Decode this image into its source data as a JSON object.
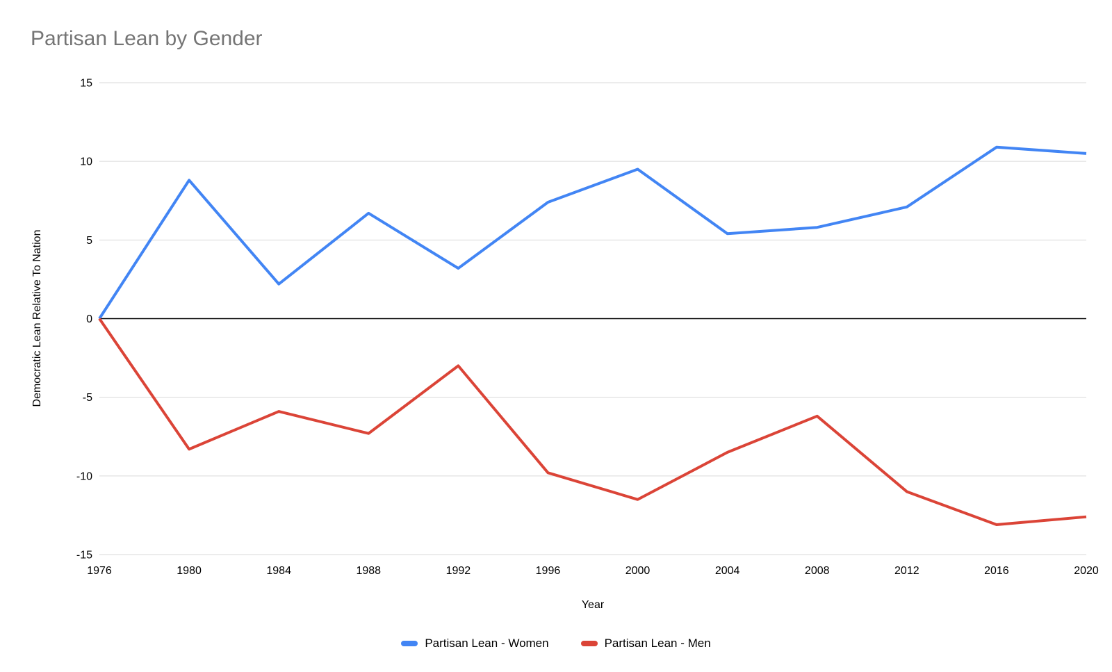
{
  "chart_data": {
    "type": "line",
    "title": "Partisan Lean by Gender",
    "xlabel": "Year",
    "ylabel": "Democratic Lean Relative To Nation",
    "x": [
      1976,
      1980,
      1984,
      1988,
      1992,
      1996,
      2000,
      2004,
      2008,
      2012,
      2016,
      2020
    ],
    "series": [
      {
        "name": "Partisan Lean - Women",
        "color": "#4285f4",
        "values": [
          0,
          8.8,
          2.2,
          6.7,
          3.2,
          7.4,
          9.5,
          5.4,
          5.8,
          7.1,
          10.9,
          10.5
        ]
      },
      {
        "name": "Partisan Lean - Men",
        "color": "#db4437",
        "values": [
          0,
          -8.3,
          -5.9,
          -7.3,
          -3.0,
          -9.8,
          -11.5,
          -8.5,
          -6.2,
          -11.0,
          -13.1,
          -12.6
        ]
      }
    ],
    "ylim": [
      -15,
      15
    ],
    "yticks": [
      15,
      10,
      5,
      0,
      -5,
      -10,
      -15
    ],
    "grid": true,
    "zero_line": true,
    "legend_position": "bottom"
  },
  "colors": {
    "background": "#ffffff",
    "title_text": "#757575",
    "axis_text": "#000000",
    "gridline": "#dadada",
    "zero_line": "#000000"
  }
}
